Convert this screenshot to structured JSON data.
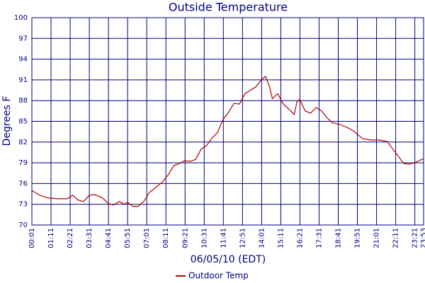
{
  "chart_data": {
    "type": "line",
    "title": "Outside Temperature",
    "x_label": "06/05/10 (EDT)",
    "y_label": "Degrees F",
    "x": [
      "00:00",
      "00:30",
      "01:00",
      "01:40",
      "02:10",
      "02:30",
      "02:50",
      "03:10",
      "03:31",
      "03:50",
      "04:20",
      "04:41",
      "05:00",
      "05:20",
      "05:40",
      "05:51",
      "06:10",
      "06:30",
      "06:50",
      "07:10",
      "07:30",
      "08:00",
      "08:20",
      "08:40",
      "09:00",
      "09:20",
      "09:40",
      "10:00",
      "10:20",
      "10:40",
      "11:00",
      "11:20",
      "11:40",
      "12:00",
      "12:20",
      "12:40",
      "13:00",
      "13:20",
      "13:40",
      "14:00",
      "14:15",
      "14:30",
      "14:40",
      "15:00",
      "15:20",
      "15:40",
      "16:00",
      "16:10",
      "16:20",
      "16:40",
      "17:00",
      "17:20",
      "17:40",
      "18:00",
      "18:20",
      "18:50",
      "19:20",
      "19:40",
      "20:10",
      "20:40",
      "21:10",
      "21:40",
      "22:00",
      "22:20",
      "22:40",
      "23:00",
      "23:20",
      "23:53"
    ],
    "series": [
      {
        "name": "Outdoor Temp",
        "color": "#b00000",
        "values": [
          75,
          74.3,
          73.9,
          73.8,
          73.8,
          74.3,
          73.6,
          73.4,
          74.3,
          74.4,
          73.9,
          73.1,
          72.9,
          73.4,
          73,
          73.3,
          72.7,
          72.7,
          73.4,
          74.7,
          75.3,
          76.3,
          77.3,
          78.6,
          78.9,
          79.3,
          79.2,
          79.5,
          81,
          81.5,
          82.6,
          83.4,
          85.3,
          86.3,
          87.6,
          87.5,
          89,
          89.5,
          90,
          91,
          91.5,
          90,
          88.3,
          89,
          87.5,
          86.8,
          86,
          87.8,
          88.2,
          86.5,
          86.2,
          87,
          86.5,
          85.5,
          84.8,
          84.5,
          84,
          83.5,
          82.5,
          82.3,
          82.3,
          82.1,
          81,
          80,
          78.9,
          78.8,
          79,
          79.6
        ]
      }
    ],
    "xlim": [
      "00:01",
      "23:53"
    ],
    "xticks": [
      "00:01",
      "01:11",
      "02:21",
      "03:31",
      "04:41",
      "05:51",
      "07:01",
      "08:11",
      "09:21",
      "10:31",
      "11:41",
      "12:51",
      "14:01",
      "15:11",
      "16:21",
      "17:31",
      "18:41",
      "19:51",
      "21:01",
      "22:11",
      "23:21",
      "23:53"
    ],
    "ylim": [
      70,
      100
    ],
    "yticks": [
      70,
      73,
      76,
      79,
      82,
      85,
      88,
      91,
      94,
      97,
      100
    ],
    "grid": true
  }
}
